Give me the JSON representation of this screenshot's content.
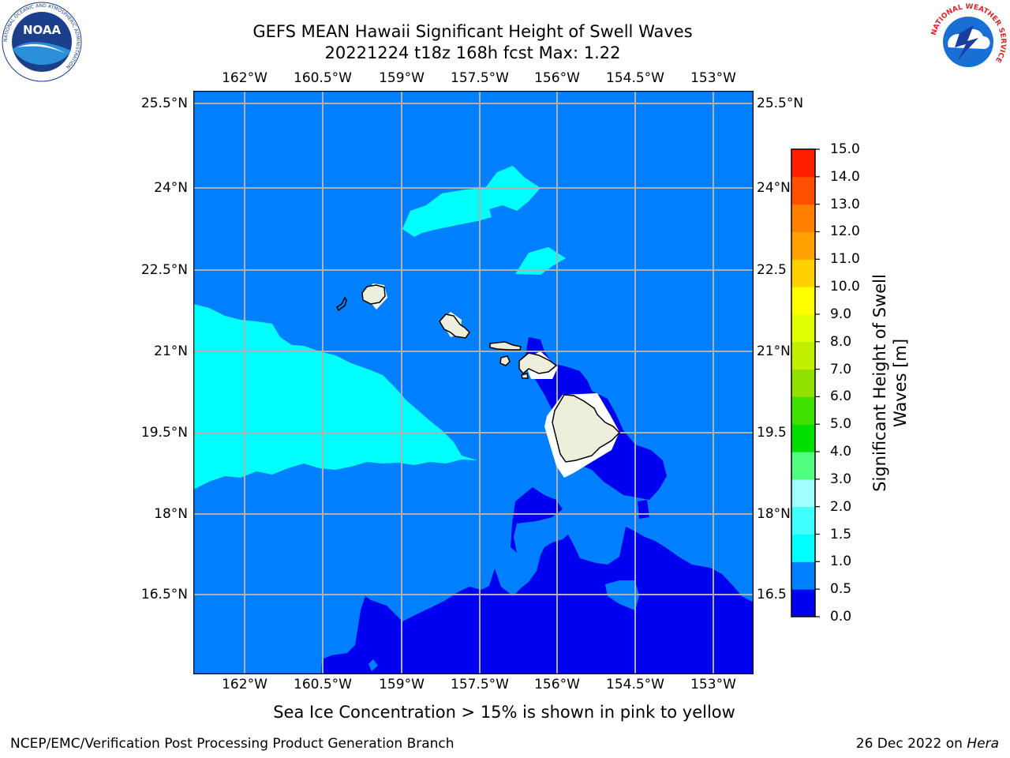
{
  "title_line1": "GEFS MEAN Hawaii Significant Height of Swell Waves",
  "title_line2": "20221224 t18z 168h fcst   Max: 1.22",
  "lon_ticks": [
    "162°W",
    "160.5°W",
    "159°W",
    "157.5°W",
    "156°W",
    "154.5°W",
    "153°W"
  ],
  "lat_ticks_left": [
    "25.5°N",
    "24°N",
    "22.5°N",
    "21°N",
    "19.5°N",
    "18°N",
    "16.5°N"
  ],
  "lat_ticks_right": [
    "25.5°N",
    "24°N",
    "22.5",
    "21°N",
    "19.5",
    "18°N",
    "16.5"
  ],
  "colorbar": {
    "label": "Significant Height of Swell Waves [m]",
    "ticks": [
      "0.0",
      "0.5",
      "1.0",
      "1.5",
      "2.0",
      "3.0",
      "4.0",
      "5.0",
      "6.0",
      "7.0",
      "8.0",
      "9.0",
      "10.0",
      "11.0",
      "12.0",
      "13.0",
      "14.0",
      "15.0"
    ],
    "colors": [
      "#0000f0",
      "#0080ff",
      "#00ffff",
      "#40ffff",
      "#a0ffff",
      "#50ff80",
      "#00e000",
      "#40e000",
      "#90e000",
      "#c0f000",
      "#e0ff00",
      "#ffff00",
      "#ffd000",
      "#ffa000",
      "#ff8000",
      "#ff5000",
      "#ff2000"
    ]
  },
  "map_colors": {
    "ocean_base": "#0080ff",
    "low_band": "#0000f0",
    "mid_band": "#00ffff",
    "land": "#eeeedc",
    "grid": "#b0b0b0"
  },
  "note": "Sea Ice Concentration > 15% is shown in pink to yellow",
  "credit": "NCEP/EMC/Verification Post Processing Product Generation Branch",
  "date_text": "26 Dec 2022 on",
  "date_machine": "Hera",
  "logos": {
    "noaa_text": "NOAA",
    "noaa_ring": "NATIONAL OCEANIC AND ATMOSPHERIC ADMINISTRATION",
    "nws_ring": "NATIONAL WEATHER SERVICE"
  }
}
